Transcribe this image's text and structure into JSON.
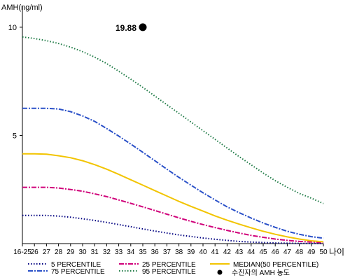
{
  "chart_data": {
    "type": "line",
    "ylabel": "AMH(ng/ml)",
    "xlabel": "나이",
    "ylim": [
      0,
      11
    ],
    "yticks": [
      5,
      10
    ],
    "categories": [
      "16-25",
      "26",
      "27",
      "28",
      "29",
      "30",
      "31",
      "32",
      "33",
      "34",
      "35",
      "36",
      "37",
      "38",
      "39",
      "40",
      "41",
      "42",
      "43",
      "44",
      "45",
      "46",
      "47",
      "48",
      "49",
      "50"
    ],
    "series": [
      {
        "name": "5 PERCENTILE",
        "color": "#000080",
        "dash": "1.5,2.5",
        "width": 2,
        "values": [
          1.3,
          1.3,
          1.3,
          1.27,
          1.22,
          1.15,
          1.07,
          0.98,
          0.88,
          0.78,
          0.68,
          0.58,
          0.49,
          0.4,
          0.33,
          0.26,
          0.2,
          0.15,
          0.1,
          0.07,
          0.05,
          0.03,
          0.02,
          0.01,
          0.01,
          0.0
        ]
      },
      {
        "name": "25 PERCENTILE",
        "color": "#d0007a",
        "dash": "7,2,2,2",
        "width": 2,
        "values": [
          2.6,
          2.6,
          2.6,
          2.57,
          2.5,
          2.42,
          2.3,
          2.17,
          2.02,
          1.86,
          1.7,
          1.53,
          1.36,
          1.19,
          1.03,
          0.88,
          0.74,
          0.61,
          0.49,
          0.38,
          0.29,
          0.21,
          0.15,
          0.1,
          0.07,
          0.05
        ]
      },
      {
        "name": "MEDIAN(50 PERCENTILE)",
        "color": "#f2c400",
        "dash": "",
        "width": 2,
        "values": [
          4.15,
          4.15,
          4.13,
          4.06,
          3.97,
          3.83,
          3.65,
          3.44,
          3.2,
          2.95,
          2.7,
          2.45,
          2.2,
          1.95,
          1.72,
          1.5,
          1.28,
          1.08,
          0.9,
          0.73,
          0.57,
          0.43,
          0.31,
          0.21,
          0.13,
          0.08
        ]
      },
      {
        "name": "75 PERCENTILE",
        "color": "#2a50c8",
        "dash": "7,2,2,2",
        "width": 2,
        "values": [
          6.25,
          6.25,
          6.25,
          6.22,
          6.1,
          5.9,
          5.65,
          5.32,
          4.97,
          4.6,
          4.22,
          3.83,
          3.44,
          3.06,
          2.7,
          2.35,
          2.02,
          1.7,
          1.43,
          1.18,
          0.95,
          0.75,
          0.57,
          0.43,
          0.32,
          0.25
        ]
      },
      {
        "name": "95 PERCENTILE",
        "color": "#1e7a45",
        "dash": "1.5,2.5",
        "width": 2,
        "values": [
          9.55,
          9.48,
          9.38,
          9.25,
          9.08,
          8.87,
          8.62,
          8.32,
          7.97,
          7.6,
          7.22,
          6.82,
          6.42,
          6.02,
          5.62,
          5.22,
          4.82,
          4.42,
          4.02,
          3.64,
          3.26,
          2.91,
          2.6,
          2.32,
          2.1,
          1.85
        ]
      }
    ],
    "patient_point": {
      "label": "수진자의 AMH 농도",
      "x": "35",
      "y": 10,
      "value_label": "19.88",
      "color": "#000000"
    },
    "legend_placement": "bottom",
    "grid": false
  }
}
